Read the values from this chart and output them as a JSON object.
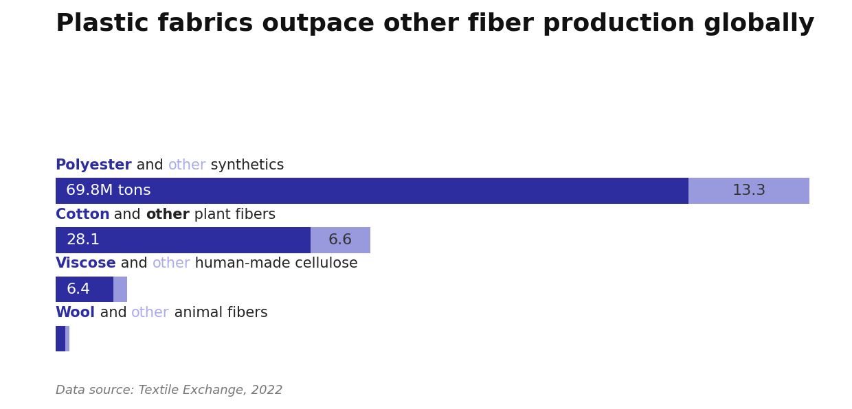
{
  "title": "Plastic fabrics outpace other fiber production globally",
  "primary_values": [
    69.8,
    28.1,
    6.4,
    1.1
  ],
  "secondary_values": [
    13.3,
    6.6,
    1.5,
    0.45
  ],
  "primary_color": "#2d2d9f",
  "secondary_color": "#9999dd",
  "primary_label_color": "#2d2d9f",
  "secondary_label_color": "#aaaaee",
  "bar_text_color": "#ffffff",
  "secondary_text_color": "#333333",
  "footnote": "Data source: Textile Exchange, 2022",
  "background_color": "#ffffff",
  "title_fontsize": 26,
  "label_fontsize": 15,
  "bar_text_fontsize": 16,
  "footnote_fontsize": 13,
  "label_parts": [
    [
      [
        "Polyester",
        "#2d2d9f",
        true
      ],
      [
        " and ",
        "#222222",
        false
      ],
      [
        "other",
        "#aaaaee",
        false
      ],
      [
        " synthetics",
        "#222222",
        false
      ]
    ],
    [
      [
        "Cotton",
        "#2d2d9f",
        true
      ],
      [
        " and ",
        "#222222",
        false
      ],
      [
        "other",
        "#222222",
        true
      ],
      [
        " plant fibers",
        "#222222",
        false
      ]
    ],
    [
      [
        "Viscose",
        "#2d2d9f",
        true
      ],
      [
        " and ",
        "#222222",
        false
      ],
      [
        "other",
        "#aaaaee",
        false
      ],
      [
        " human-made cellulose",
        "#222222",
        false
      ]
    ],
    [
      [
        "Wool",
        "#2d2d9f",
        true
      ],
      [
        " and ",
        "#222222",
        false
      ],
      [
        "other",
        "#aaaaee",
        false
      ],
      [
        " animal fibers",
        "#222222",
        false
      ]
    ]
  ],
  "bar_labels": [
    [
      "69.8M tons",
      true,
      "28.1",
      false,
      "6.4",
      false,
      null
    ],
    [
      "13.3",
      false,
      "6.6",
      false,
      null,
      false,
      null
    ]
  ],
  "xlim": 85.0
}
